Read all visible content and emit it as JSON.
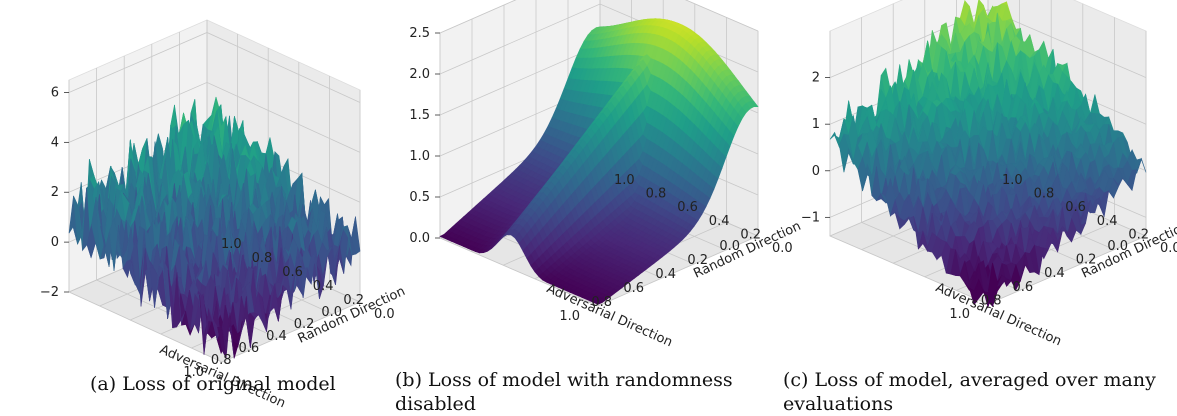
{
  "chart_data": [
    {
      "type": "surface",
      "caption": "(a) Loss of original model",
      "xlabel": "Adversarial Direction",
      "ylabel": "Random Direction",
      "x_ticks": [
        "0.0",
        "0.2",
        "0.4",
        "0.6",
        "0.8",
        "1.0"
      ],
      "y_ticks": [
        "0.0",
        "0.2",
        "0.4",
        "0.6",
        "0.8",
        "1.0"
      ],
      "z_ticks": [
        "−2",
        "0",
        "2",
        "4",
        "6"
      ],
      "xlim": [
        0,
        1
      ],
      "ylim": [
        0,
        1
      ],
      "zlim": [
        -2,
        6.5
      ],
      "colormap": "viridis",
      "surface": {
        "base": 2.6,
        "slope_adv": -1.4,
        "slope_rand": -2.6,
        "noise": 1.6
      }
    },
    {
      "type": "surface",
      "caption": "(b) Loss of model with randomness disabled",
      "xlabel": "Adversarial Direction",
      "ylabel": "Random Direction",
      "x_ticks": [
        "0.0",
        "0.2",
        "0.4",
        "0.6",
        "0.8",
        "1.0"
      ],
      "y_ticks": [
        "0.0",
        "0.2",
        "0.4",
        "0.6",
        "0.8",
        "1.0"
      ],
      "z_ticks": [
        "0.0",
        "0.5",
        "1.0",
        "1.5",
        "2.0",
        "2.5"
      ],
      "xlim": [
        0,
        1
      ],
      "ylim": [
        0,
        1
      ],
      "zlim": [
        0,
        2.5
      ],
      "colormap": "viridis",
      "surface": {
        "shape": "saddle",
        "peak": 2.3,
        "trough": 0.1
      }
    },
    {
      "type": "surface",
      "caption": "(c) Loss of model, averaged over many evaluations",
      "xlabel": "Adversarial Direction",
      "ylabel": "Random Direction",
      "x_ticks": [
        "0.0",
        "0.2",
        "0.4",
        "0.6",
        "0.8",
        "1.0"
      ],
      "y_ticks": [
        "0.0",
        "0.2",
        "0.4",
        "0.6",
        "0.8",
        "1.0"
      ],
      "z_ticks": [
        "−1",
        "0",
        "1",
        "2"
      ],
      "xlim": [
        0,
        1
      ],
      "ylim": [
        0,
        1
      ],
      "zlim": [
        -1.4,
        3.0
      ],
      "colormap": "viridis",
      "surface": {
        "base": 2.3,
        "slope_adv": -1.6,
        "slope_rand": -2.4,
        "noise": 0.45
      }
    }
  ]
}
